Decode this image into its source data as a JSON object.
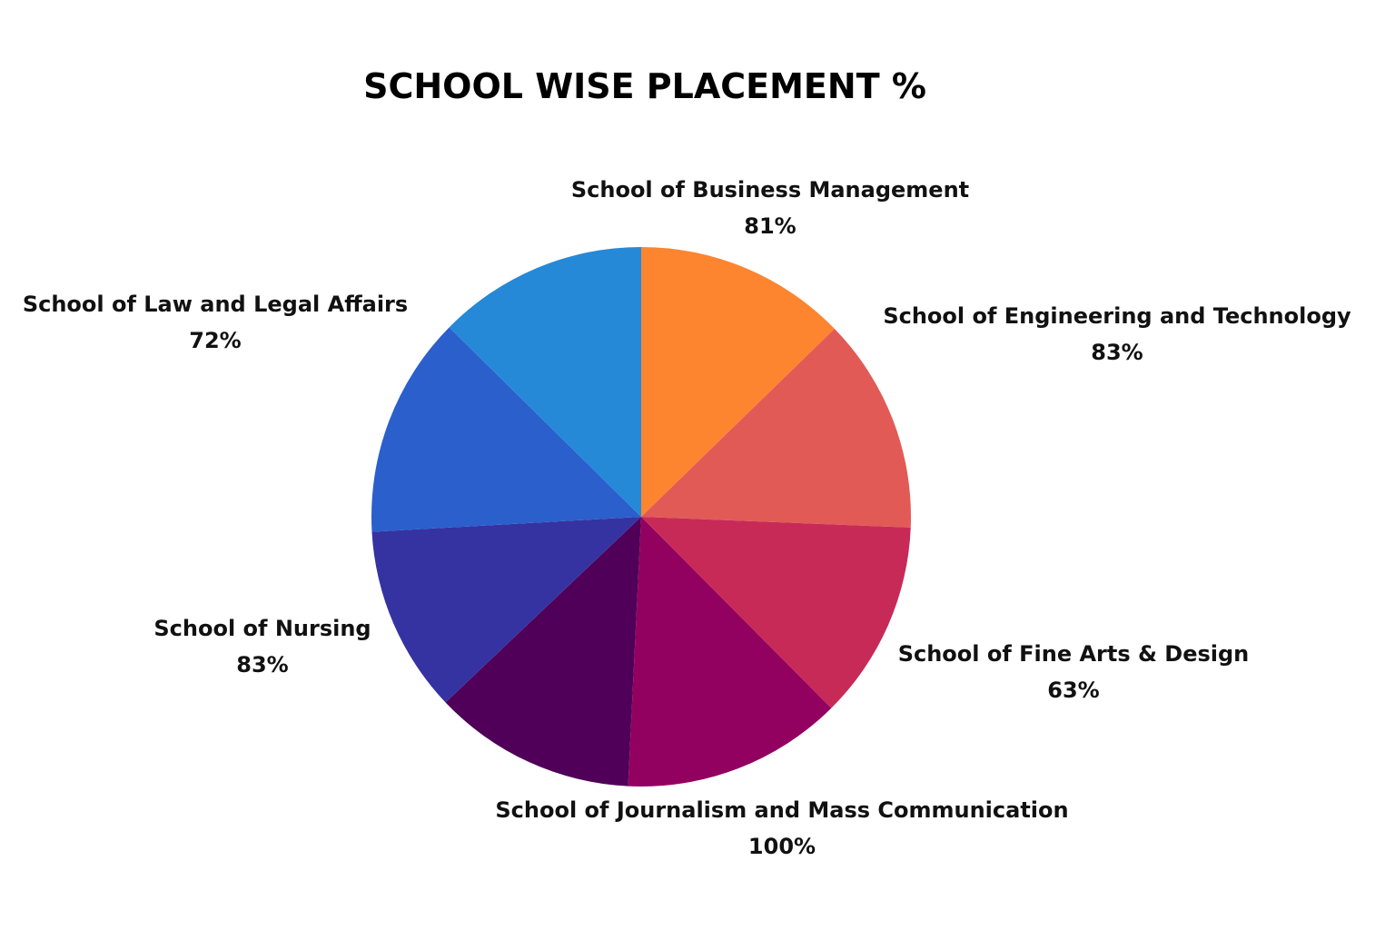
{
  "chart_data": {
    "type": "pie",
    "title": "SCHOOL WISE PLACEMENT %",
    "slices": [
      {
        "name": "School of Business Management",
        "value": 81,
        "value_label": "81%",
        "color": "#FD8530"
      },
      {
        "name": "School of Engineering and Technology",
        "value": 83,
        "value_label": "83%",
        "color": "#E25A56"
      },
      {
        "name": "School of Fine Arts & Design",
        "value": 63,
        "value_label": "63%",
        "color": "#C82A57"
      },
      {
        "name": "School of Journalism and Mass Communication",
        "value": 100,
        "value_label": "100%",
        "color": "#930160"
      },
      {
        "name": "School of Nursing",
        "value": 83,
        "value_label": "83%",
        "color": "#500058"
      },
      {
        "name": "School of Law and Legal Affairs",
        "value": 72,
        "value_label": "72%",
        "color": "#3533A1"
      }
    ],
    "extra_slices": [
      {
        "color": "#2A5FCC"
      },
      {
        "color": "#2589D8"
      }
    ],
    "legend": "none",
    "grid": false
  }
}
